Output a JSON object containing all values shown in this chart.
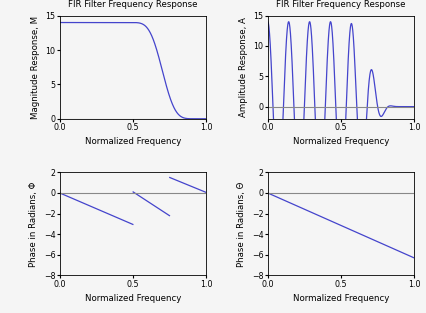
{
  "title": "FIR Filter Frequency Response",
  "xlabel": "Normalized Frequency",
  "ylabel_mag": "Magnitude Response, M",
  "ylabel_amp": "Amplitude Response, A",
  "ylabel_phase1": "Phase in Radians, Φ",
  "ylabel_phase2": "Phase in Radians, Θ",
  "xlim": [
    0,
    1
  ],
  "mag_ylim": [
    0,
    15
  ],
  "amp_ylim": [
    -2,
    15
  ],
  "phase1_ylim": [
    -8,
    2
  ],
  "phase2_ylim": [
    -8,
    2
  ],
  "line_color": "#4444cc",
  "zero_line_color": "#888888",
  "background": "#f5f5f5",
  "xticks": [
    0,
    0.5,
    1
  ],
  "mag_yticks": [
    0,
    5,
    10,
    15
  ],
  "phase_yticks": [
    -8,
    -6,
    -4,
    -2,
    0,
    2
  ]
}
